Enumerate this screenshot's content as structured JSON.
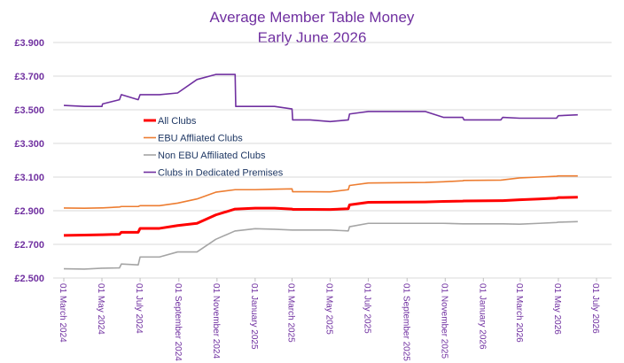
{
  "chart_data": {
    "type": "line",
    "title": "Average Member Table Money",
    "subtitle": "Early June 2026",
    "x": [
      "2024-03-01",
      "2024-04-03",
      "2024-05-01",
      "2024-05-02",
      "2024-05-29",
      "2024-06-01",
      "2024-06-28",
      "2024-07-01",
      "2024-08-01",
      "2024-08-30",
      "2024-09-30",
      "2024-10-30",
      "2024-11-30",
      "2024-12-01",
      "2025-01-01",
      "2025-02-01",
      "2025-03-01",
      "2025-03-02",
      "2025-03-30",
      "2025-05-01",
      "2025-05-30",
      "2025-06-01",
      "2025-07-01",
      "2025-09-30",
      "2025-10-29",
      "2025-11-29",
      "2025-12-01",
      "2026-01-29",
      "2026-02-01",
      "2026-02-28",
      "2026-03-31",
      "2026-04-28",
      "2026-05-01",
      "2026-06-01"
    ],
    "series": [
      {
        "name": "All Clubs",
        "color": "#ff0000",
        "values": [
          2.753,
          2.755,
          2.757,
          2.757,
          2.76,
          2.772,
          2.772,
          2.795,
          2.795,
          2.812,
          2.825,
          2.875,
          2.91,
          2.91,
          2.915,
          2.915,
          2.91,
          2.908,
          2.908,
          2.907,
          2.912,
          2.935,
          2.95,
          2.952,
          2.955,
          2.957,
          2.958,
          2.96,
          2.96,
          2.965,
          2.97,
          2.975,
          2.978,
          2.98
        ]
      },
      {
        "name": "EBU Affliated Clubs",
        "color": "#ed7d31",
        "values": [
          2.916,
          2.915,
          2.917,
          2.917,
          2.922,
          2.925,
          2.925,
          2.93,
          2.93,
          2.945,
          2.97,
          3.01,
          3.025,
          3.025,
          3.025,
          3.028,
          3.03,
          3.013,
          3.013,
          3.012,
          3.025,
          3.05,
          3.065,
          3.068,
          3.072,
          3.078,
          3.08,
          3.082,
          3.083,
          3.095,
          3.1,
          3.105,
          3.107,
          3.107
        ]
      },
      {
        "name": "Non EBU Affiliated Clubs",
        "color": "#a5a5a5",
        "values": [
          2.555,
          2.553,
          2.558,
          2.558,
          2.56,
          2.583,
          2.578,
          2.625,
          2.625,
          2.655,
          2.655,
          2.73,
          2.78,
          2.78,
          2.793,
          2.79,
          2.785,
          2.785,
          2.785,
          2.785,
          2.78,
          2.805,
          2.825,
          2.825,
          2.825,
          2.822,
          2.822,
          2.822,
          2.822,
          2.82,
          2.825,
          2.83,
          2.832,
          2.835
        ]
      },
      {
        "name": "Clubs in Dedicated Premises",
        "color": "#7030a0",
        "values": [
          3.526,
          3.52,
          3.52,
          3.535,
          3.56,
          3.59,
          3.56,
          3.59,
          3.59,
          3.6,
          3.68,
          3.71,
          3.71,
          3.52,
          3.52,
          3.52,
          3.505,
          3.44,
          3.44,
          3.43,
          3.44,
          3.475,
          3.49,
          3.49,
          3.455,
          3.455,
          3.44,
          3.44,
          3.455,
          3.45,
          3.45,
          3.45,
          3.465,
          3.47
        ]
      }
    ],
    "xlim": [
      "2024-03-01",
      "2026-07-01"
    ],
    "xticks": [
      {
        "value": "2024-03-01",
        "label": "01 March 2024"
      },
      {
        "value": "2024-05-01",
        "label": "01 May 2024"
      },
      {
        "value": "2024-07-01",
        "label": "01 July 2024"
      },
      {
        "value": "2024-09-01",
        "label": "01 September 2024"
      },
      {
        "value": "2024-11-01",
        "label": "01 November 2024"
      },
      {
        "value": "2025-01-01",
        "label": "01 January 2025"
      },
      {
        "value": "2025-03-01",
        "label": "01 March 2025"
      },
      {
        "value": "2025-05-01",
        "label": "01 May 2025"
      },
      {
        "value": "2025-07-01",
        "label": "01 July 2025"
      },
      {
        "value": "2025-09-01",
        "label": "01 September 2025"
      },
      {
        "value": "2025-11-01",
        "label": "01 November 2025"
      },
      {
        "value": "2026-01-01",
        "label": "01 January 2026"
      },
      {
        "value": "2026-03-01",
        "label": "01 March 2026"
      },
      {
        "value": "2026-05-01",
        "label": "01 May 2026"
      },
      {
        "value": "2026-07-01",
        "label": "01 July 2026"
      }
    ],
    "ylim": [
      2.5,
      3.9
    ],
    "yticks": [
      {
        "value": 2.5,
        "label": "£2.500"
      },
      {
        "value": 2.7,
        "label": "£2.700"
      },
      {
        "value": 2.9,
        "label": "£2.900"
      },
      {
        "value": 3.1,
        "label": "£3.100"
      },
      {
        "value": 3.3,
        "label": "£3.300"
      },
      {
        "value": 3.5,
        "label": "£3.500"
      },
      {
        "value": 3.7,
        "label": "£3.700"
      },
      {
        "value": 3.9,
        "label": "£3.900"
      }
    ],
    "grid": true,
    "legend": "upper-left",
    "highlight_series": "All Clubs"
  }
}
